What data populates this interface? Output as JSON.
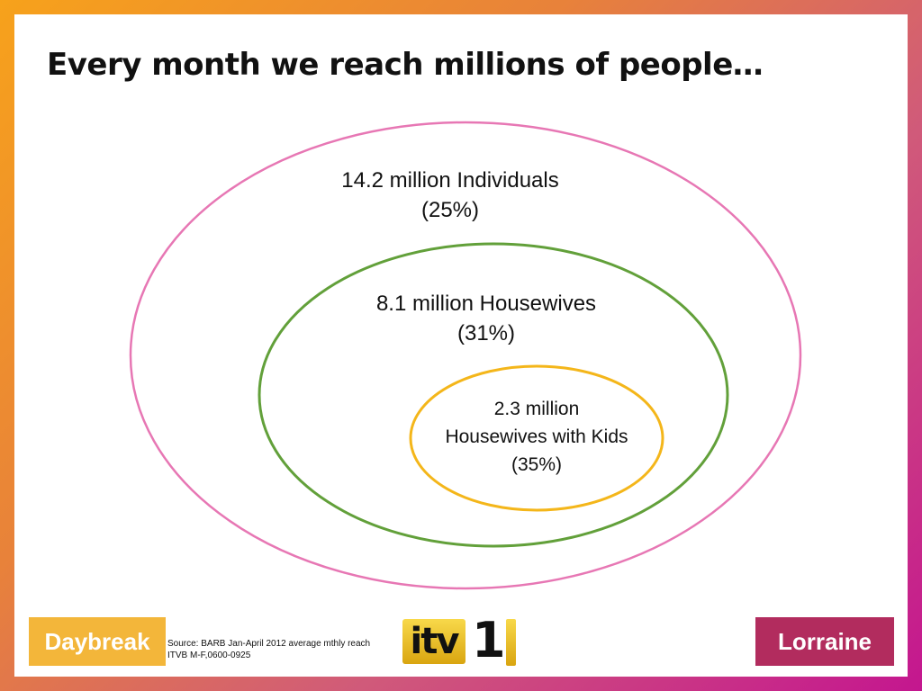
{
  "slide": {
    "title": "Every month we reach millions of people…"
  },
  "diagram": {
    "outer": {
      "line1": "14.2 million Individuals",
      "line2": "(25%)",
      "color": "#e777b4"
    },
    "middle": {
      "line1": "8.1 million Housewives",
      "line2": "(31%)",
      "color": "#62a03a"
    },
    "inner": {
      "line1": "2.3 million",
      "line2": "Housewives with Kids",
      "line3": "(35%)",
      "color": "#f4b61a"
    }
  },
  "footer": {
    "source_line1": "Source: BARB  Jan-April 2012 average mthly reach",
    "source_line2": "ITVB M-F,0600-0925",
    "logo_left": "Daybreak",
    "logo_center_text": "itv",
    "logo_center_number": "1",
    "logo_right": "Lorraine"
  }
}
